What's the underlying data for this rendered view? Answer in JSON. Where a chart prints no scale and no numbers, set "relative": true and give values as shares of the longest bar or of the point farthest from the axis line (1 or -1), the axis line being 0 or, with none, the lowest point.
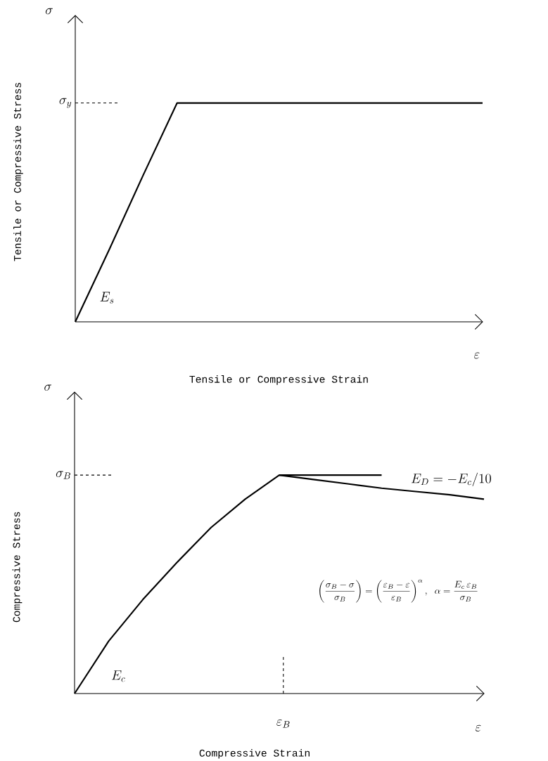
{
  "chart_data": [
    {
      "type": "line",
      "relative": true,
      "xlabel": "Tensile or Compressive Strain",
      "ylabel": "Tensile or Compressive Stress",
      "categories": [
        null,
        null,
        null,
        null,
        null,
        null,
        null,
        null,
        null,
        null,
        null,
        null,
        null
      ],
      "series": [
        {
          "values": [
            0,
            0.33,
            0.67,
            1,
            1,
            1,
            1,
            1,
            1,
            1,
            1,
            1,
            1
          ],
          "color": "#000000"
        }
      ],
      "ref_lines": [
        {
          "axis": "y",
          "value": 1,
          "label": "\\sigma_y",
          "line_style": "dashed"
        }
      ],
      "annotations": [
        "\\sigma",
        "\\varepsilon",
        "E_s"
      ]
    },
    {
      "type": "line",
      "relative": true,
      "xlabel": "Compressive Strain",
      "ylabel": "Compressive Stress",
      "categories": [
        null,
        null,
        null,
        null,
        null,
        null,
        null,
        null,
        null,
        null,
        null,
        null,
        null
      ],
      "series": [
        {
          "values": [
            0,
            0.24,
            0.43,
            0.6,
            0.76,
            0.89,
            1,
            0.98,
            0.96,
            0.94,
            0.925,
            0.91,
            0.89
          ],
          "color": "#000000"
        },
        {
          "values": [
            null,
            null,
            null,
            null,
            null,
            null,
            1,
            1,
            1,
            1,
            null,
            null,
            null
          ],
          "color": "#000000"
        }
      ],
      "ref_lines": [
        {
          "axis": "y",
          "value": 1,
          "label": "\\sigma_B",
          "line_style": "dashed"
        }
      ],
      "annotations": [
        "\\sigma",
        "\\varepsilon",
        "\\varepsilon_B",
        "E_c",
        "E_D = -E_c/10",
        "\\left(\\frac{\\sigma_B-\\sigma}{\\sigma_B}\\right)=\\left(\\frac{\\varepsilon_B-\\varepsilon}{\\varepsilon_B}\\right)^{\\alpha},\\ \\alpha=\\frac{E_c\\,\\varepsilon_B}{\\sigma_B}"
      ]
    }
  ]
}
